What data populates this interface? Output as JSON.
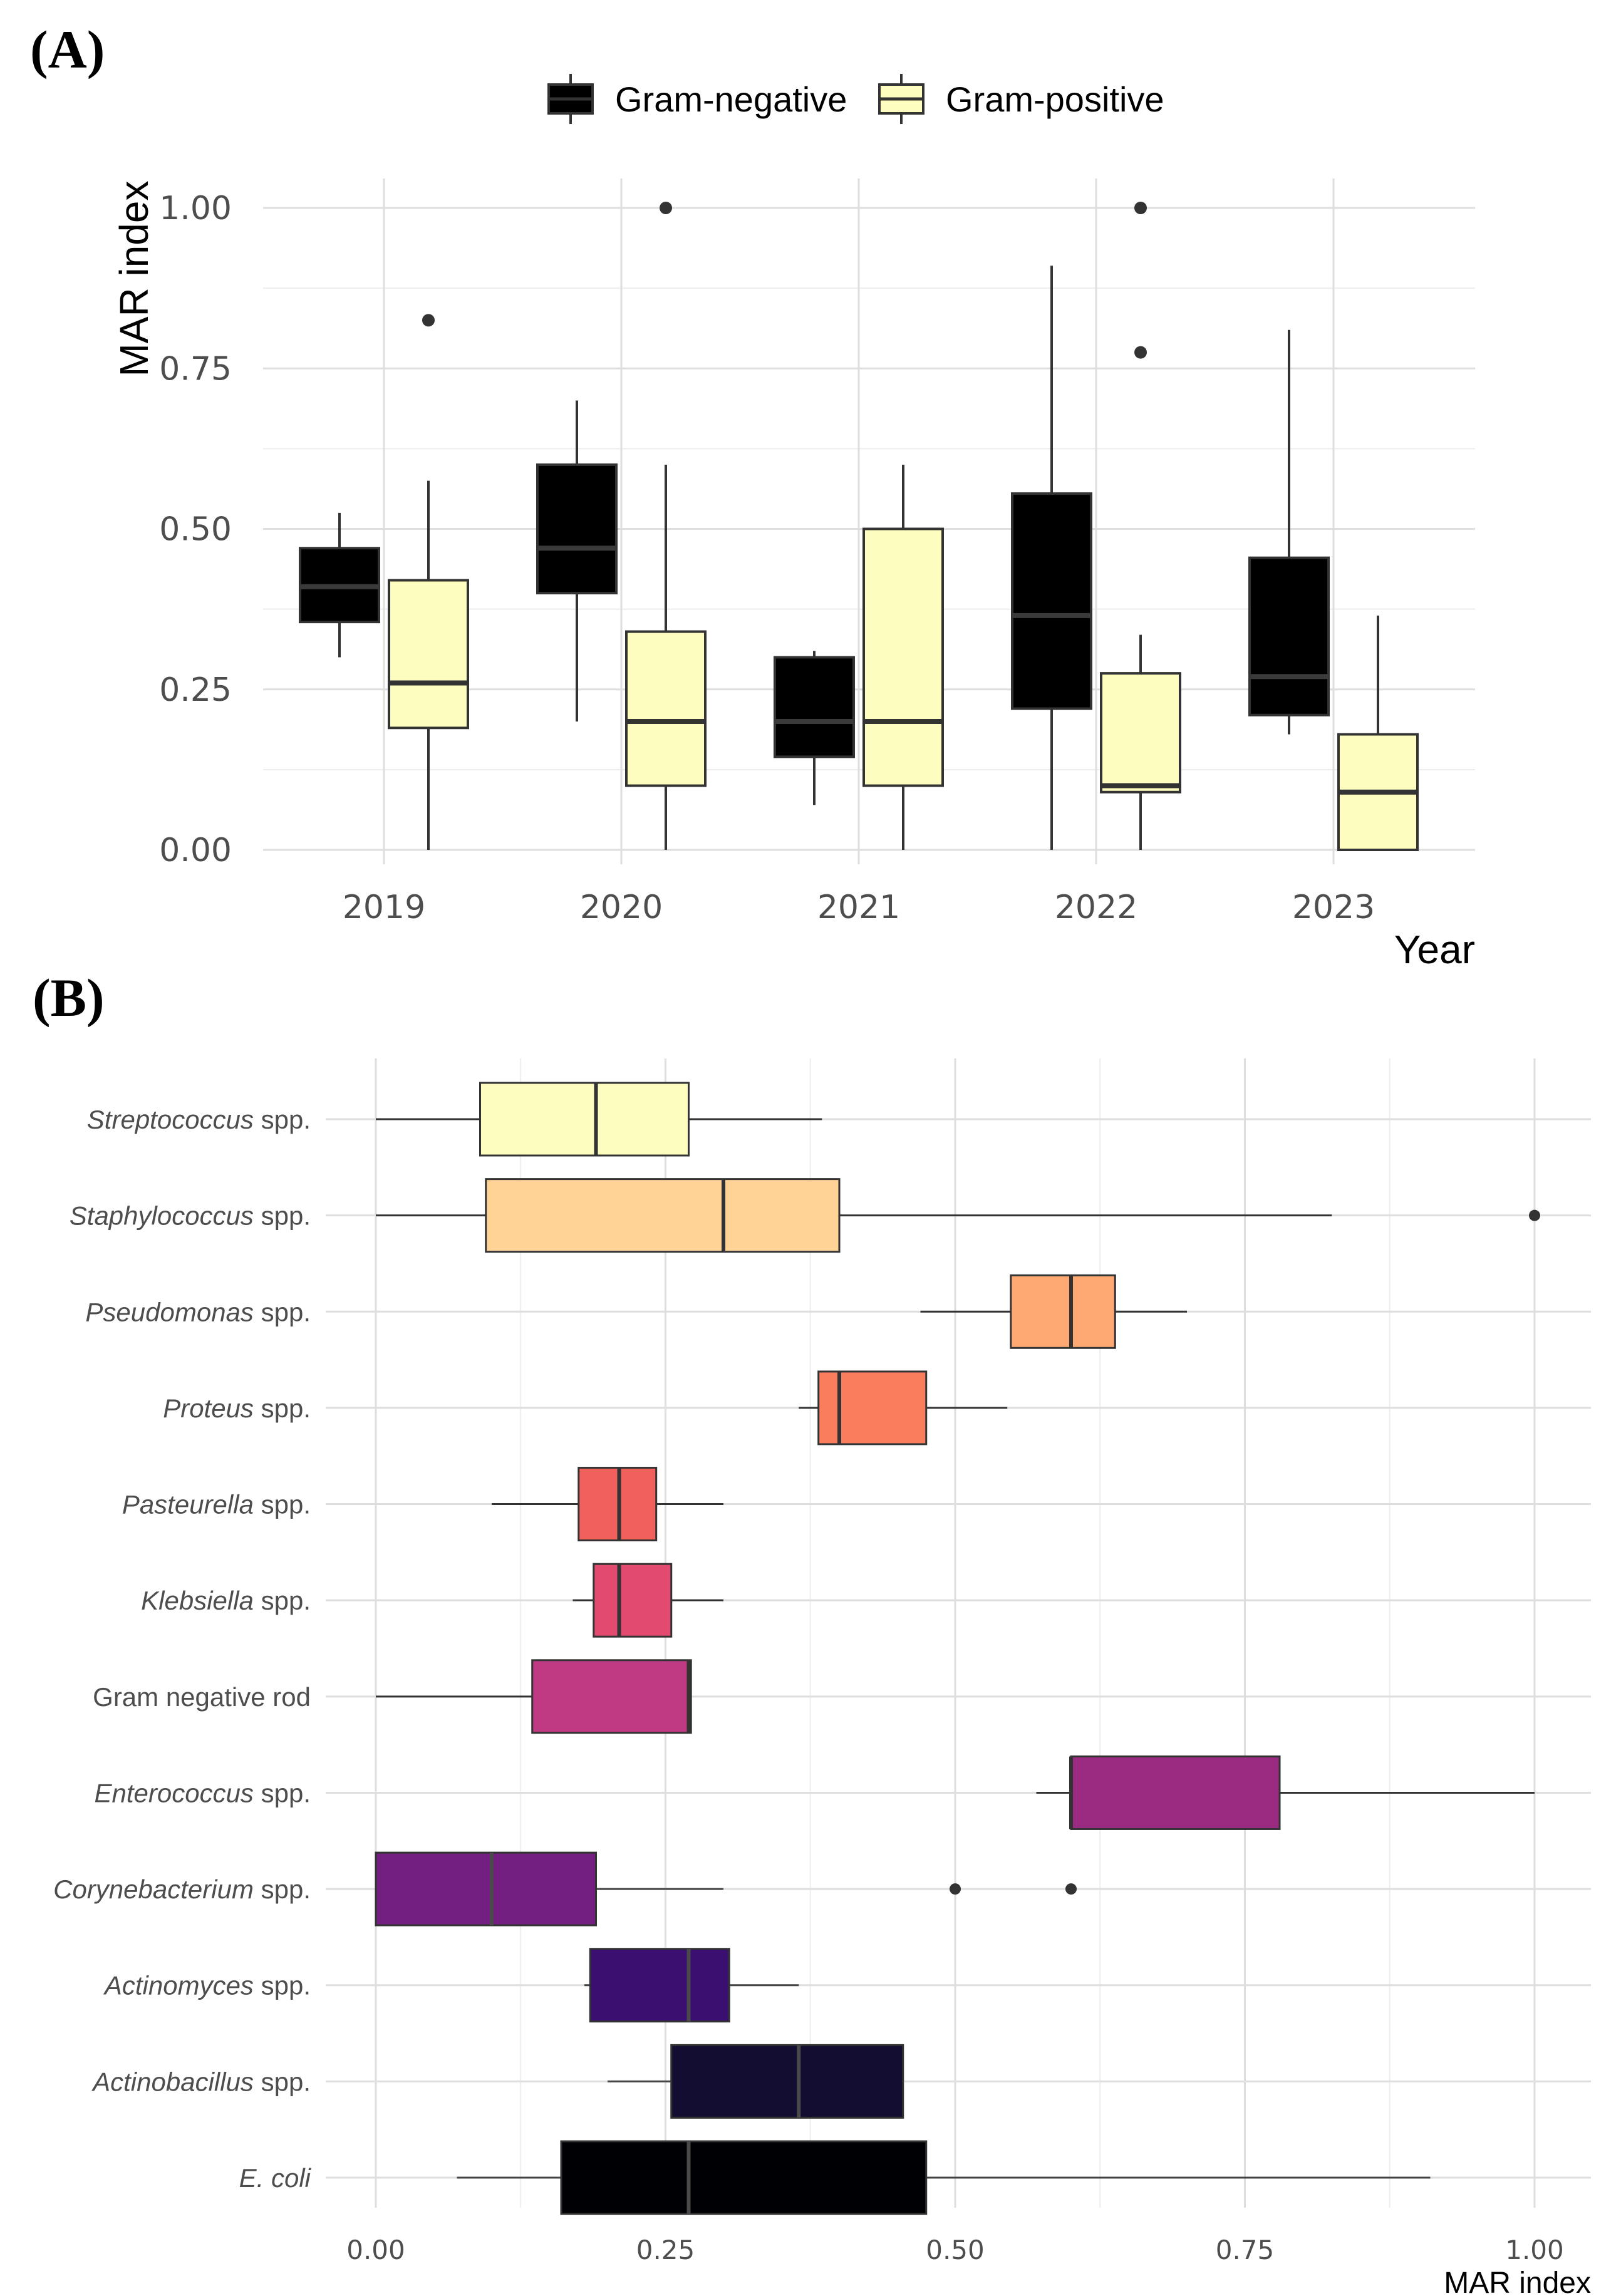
{
  "chart_data": [
    {
      "panel": "(A)",
      "type": "boxplot",
      "orientation": "vertical",
      "xlabel": "Year",
      "ylabel": "MAR index",
      "ylim": [
        -0.05,
        1.05
      ],
      "yticks": [
        0,
        0.25,
        0.5,
        0.75,
        1.0
      ],
      "ytick_labels": [
        "0.00",
        "0.25",
        "0.50",
        "0.75",
        "1.00"
      ],
      "categories": [
        "2019",
        "2020",
        "2021",
        "2022",
        "2023"
      ],
      "legend": {
        "position": "top",
        "entries": [
          "Gram-negative",
          "Gram-positive"
        ]
      },
      "series": [
        {
          "name": "Gram-negative",
          "color": "#000000",
          "boxes": [
            {
              "min": 0.3,
              "q1": 0.355,
              "median": 0.41,
              "q3": 0.47,
              "max": 0.525,
              "outliers": []
            },
            {
              "min": 0.2,
              "q1": 0.4,
              "median": 0.47,
              "q3": 0.6,
              "max": 0.7,
              "outliers": []
            },
            {
              "min": 0.07,
              "q1": 0.145,
              "median": 0.2,
              "q3": 0.3,
              "max": 0.31,
              "outliers": []
            },
            {
              "min": 0.0,
              "q1": 0.22,
              "median": 0.365,
              "q3": 0.555,
              "max": 0.91,
              "outliers": []
            },
            {
              "min": 0.18,
              "q1": 0.21,
              "median": 0.27,
              "q3": 0.455,
              "max": 0.81,
              "outliers": []
            }
          ]
        },
        {
          "name": "Gram-positive",
          "color": "#fcfdbf",
          "boxes": [
            {
              "min": 0.0,
              "q1": 0.19,
              "median": 0.26,
              "q3": 0.42,
              "max": 0.575,
              "outliers": [
                0.825
              ]
            },
            {
              "min": 0.0,
              "q1": 0.1,
              "median": 0.2,
              "q3": 0.34,
              "max": 0.6,
              "outliers": [
                1.0
              ]
            },
            {
              "min": 0.0,
              "q1": 0.1,
              "median": 0.2,
              "q3": 0.5,
              "max": 0.6,
              "outliers": []
            },
            {
              "min": 0.0,
              "q1": 0.09,
              "median": 0.1,
              "q3": 0.275,
              "max": 0.335,
              "outliers": [
                0.775,
                1.0
              ]
            },
            {
              "min": 0.0,
              "q1": 0.0,
              "median": 0.09,
              "q3": 0.18,
              "max": 0.365,
              "outliers": []
            }
          ]
        }
      ]
    },
    {
      "panel": "(B)",
      "type": "boxplot",
      "orientation": "horizontal",
      "xlabel": "MAR index",
      "ylabel": "",
      "xlim": [
        0,
        1.0
      ],
      "xticks": [
        0,
        0.25,
        0.5,
        0.75,
        1.0
      ],
      "xtick_labels": [
        "0.00",
        "0.25",
        "0.50",
        "0.75",
        "1.00"
      ],
      "categories": [
        {
          "italic": "Streptococcus",
          "suffix": " spp.",
          "color": "#fcfdbf",
          "min": 0.0,
          "q1": 0.09,
          "median": 0.19,
          "q3": 0.27,
          "max": 0.385,
          "outliers": []
        },
        {
          "italic": "Staphylococcus",
          "suffix": " spp.",
          "color": "#fed395",
          "min": 0.0,
          "q1": 0.095,
          "median": 0.3,
          "q3": 0.4,
          "max": 0.825,
          "outliers": [
            1.0
          ]
        },
        {
          "italic": "Pseudomonas",
          "suffix": " spp.",
          "color": "#fea973",
          "min": 0.47,
          "q1": 0.548,
          "median": 0.6,
          "q3": 0.638,
          "max": 0.7,
          "outliers": []
        },
        {
          "italic": "Proteus",
          "suffix": " spp.",
          "color": "#fa7d5e",
          "min": 0.365,
          "q1": 0.382,
          "median": 0.4,
          "q3": 0.475,
          "max": 0.545,
          "outliers": []
        },
        {
          "italic": "Pasteurella",
          "suffix": " spp.",
          "color": "#f1605d",
          "min": 0.1,
          "q1": 0.175,
          "median": 0.21,
          "q3": 0.242,
          "max": 0.3,
          "outliers": []
        },
        {
          "italic": "Klebsiella",
          "suffix": " spp.",
          "color": "#e34a6f",
          "min": 0.17,
          "q1": 0.188,
          "median": 0.21,
          "q3": 0.255,
          "max": 0.3,
          "outliers": []
        },
        {
          "italic": "",
          "suffix": "Gram negative rod",
          "color": "#c03a83",
          "min": 0.0,
          "q1": 0.135,
          "median": 0.27,
          "q3": 0.272,
          "max": 0.272,
          "outliers": []
        },
        {
          "italic": "Enterococcus",
          "suffix": " spp.",
          "color": "#9a2b80",
          "min": 0.57,
          "q1": 0.6,
          "median": 0.6,
          "q3": 0.78,
          "max": 1.0,
          "outliers": []
        },
        {
          "italic": "Corynebacterium",
          "suffix": " spp.",
          "color": "#721f81",
          "min": 0.0,
          "q1": 0.0,
          "median": 0.1,
          "q3": 0.19,
          "max": 0.3,
          "outliers": [
            0.5,
            0.6
          ]
        },
        {
          "italic": "Actinomyces",
          "suffix": " spp.",
          "color": "#3b0f70",
          "min": 0.18,
          "q1": 0.185,
          "median": 0.27,
          "q3": 0.305,
          "max": 0.365,
          "outliers": []
        },
        {
          "italic": "Actinobacillus",
          "suffix": " spp.",
          "color": "#120d31",
          "min": 0.2,
          "q1": 0.255,
          "median": 0.365,
          "q3": 0.455,
          "max": 0.455,
          "outliers": []
        },
        {
          "italic": "E. coli",
          "suffix": "",
          "color": "#000004",
          "min": 0.07,
          "q1": 0.16,
          "median": 0.27,
          "q3": 0.475,
          "max": 0.91,
          "outliers": []
        }
      ]
    }
  ]
}
